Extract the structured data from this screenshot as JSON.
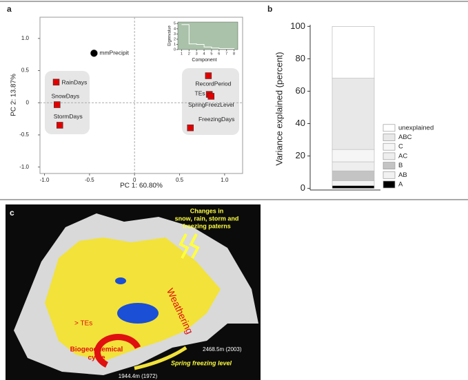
{
  "chart_data": [
    {
      "type": "scatter",
      "panel_label": "a",
      "xlabel": "PC 1: 60.80%",
      "ylabel": "PC 2: 13.87%",
      "labels": [
        "mmPrecipit",
        "RainDays",
        "SnowDays",
        "StormDays",
        "RecordPeriod",
        "TEs",
        "SpringFreezLevel",
        "FreezingDays"
      ],
      "x": [
        -0.45,
        -0.87,
        -0.86,
        -0.83,
        0.82,
        0.83,
        0.85,
        0.62
      ],
      "values": [
        0.77,
        0.32,
        -0.03,
        -0.35,
        0.42,
        0.13,
        0.1,
        -0.39
      ],
      "markers": [
        "circle",
        "square",
        "square",
        "square",
        "square",
        "square",
        "square",
        "square"
      ],
      "colors": [
        "#000000",
        "#e00000",
        "#e00000",
        "#e00000",
        "#e00000",
        "#e00000",
        "#e00000",
        "#e00000"
      ],
      "xlim": [
        -1.05,
        1.2
      ],
      "ylim": [
        -1.1,
        1.33
      ],
      "xticks": [
        {
          "value": -1,
          "label": "-1.0"
        },
        -0.5,
        0,
        0.5,
        {
          "value": 1,
          "label": "1.0"
        }
      ],
      "yticks": [
        {
          "value": -1,
          "label": "-1.0"
        },
        -0.5,
        0,
        0.5,
        {
          "value": 1,
          "label": "1.0"
        }
      ]
    },
    {
      "type": "line",
      "xlabel": "Component",
      "ylabel": "Eigenvalue",
      "x": [
        1,
        2,
        3,
        4,
        5,
        6,
        7,
        8
      ],
      "values": [
        4.8,
        1.1,
        1.0,
        0.5,
        0.3,
        0.2,
        0.2,
        0.1
      ],
      "color": "#ffffff",
      "background": "#a9c2a9",
      "xlim": [
        0.5,
        8.5
      ],
      "ylim": [
        0,
        5.3
      ],
      "xticks": [
        1,
        2,
        3,
        4,
        5,
        6,
        7,
        8
      ],
      "yticks": [
        0,
        1,
        2,
        3,
        4,
        5
      ]
    },
    {
      "type": "stacked-bar",
      "panel_label": "b",
      "ylabel": "Variance explained (percent)",
      "categories": [
        null
      ],
      "series": [
        {
          "name": "A",
          "color": "#000000",
          "values": [
            1.7
          ]
        },
        {
          "name": "AB",
          "color": "#f2f2f2",
          "values": [
            3.0
          ]
        },
        {
          "name": "B",
          "color": "#c4c4c4",
          "values": [
            6.1
          ]
        },
        {
          "name": "AC",
          "color": "#eeeeee",
          "values": [
            5.6
          ]
        },
        {
          "name": "C",
          "color": "#f6f6f6",
          "values": [
            7.6
          ]
        },
        {
          "name": "ABC",
          "color": "#e8e8e8",
          "values": [
            44.0
          ]
        },
        {
          "name": "unexplained",
          "color": "#ffffff",
          "values": [
            32.0
          ]
        }
      ],
      "ylim": [
        -1,
        101
      ],
      "yticks": [
        0,
        20,
        40,
        60,
        80,
        100
      ],
      "legend": "lower-right"
    }
  ],
  "figure_c": {
    "panel_label": "c",
    "callout": [
      "Changes in",
      "snow, rain, storm and",
      "freezing paterns"
    ],
    "weathering": "Weathering",
    "tes": "> TEs",
    "cycle": [
      "Biogeochemical",
      "cycle"
    ],
    "freezing_level": "Spring freezing level",
    "elev_2003": "2468.5m (2003)",
    "elev_1972": "1944.4m (1972)"
  }
}
